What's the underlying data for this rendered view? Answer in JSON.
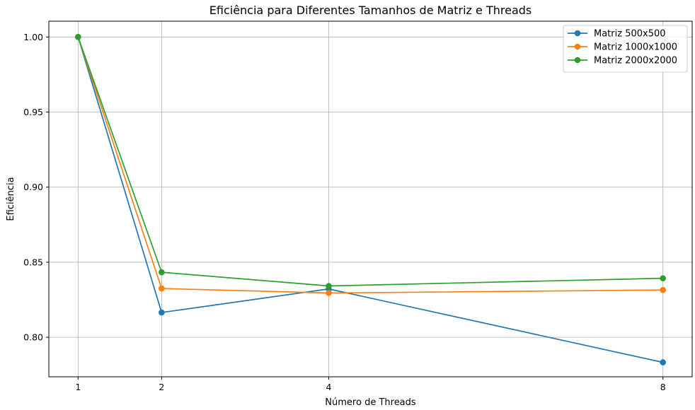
{
  "chart_data": {
    "type": "line",
    "title": "Eficiência para Diferentes Tamanhos de Matriz e Threads",
    "xlabel": "Número de Threads",
    "ylabel": "Eficiência",
    "x": [
      1,
      2,
      4,
      8
    ],
    "x_ticks": [
      "1",
      "2",
      "4",
      "8"
    ],
    "y_ticks": [
      "0.80",
      "0.85",
      "0.90",
      "0.95",
      "1.00"
    ],
    "xlim": [
      0.65,
      8.35
    ],
    "ylim": [
      0.7737,
      1.0105
    ],
    "grid": true,
    "legend_position": "top-right",
    "series": [
      {
        "name": "Matriz 500x500",
        "color": "#1f77b4",
        "values": [
          1.0,
          0.8165,
          0.8322,
          0.7833
        ]
      },
      {
        "name": "Matriz 1000x1000",
        "color": "#ff7f0e",
        "values": [
          1.0,
          0.8325,
          0.8295,
          0.8315
        ]
      },
      {
        "name": "Matriz 2000x2000",
        "color": "#2ca02c",
        "values": [
          1.0,
          0.8433,
          0.8342,
          0.8393
        ]
      }
    ]
  }
}
